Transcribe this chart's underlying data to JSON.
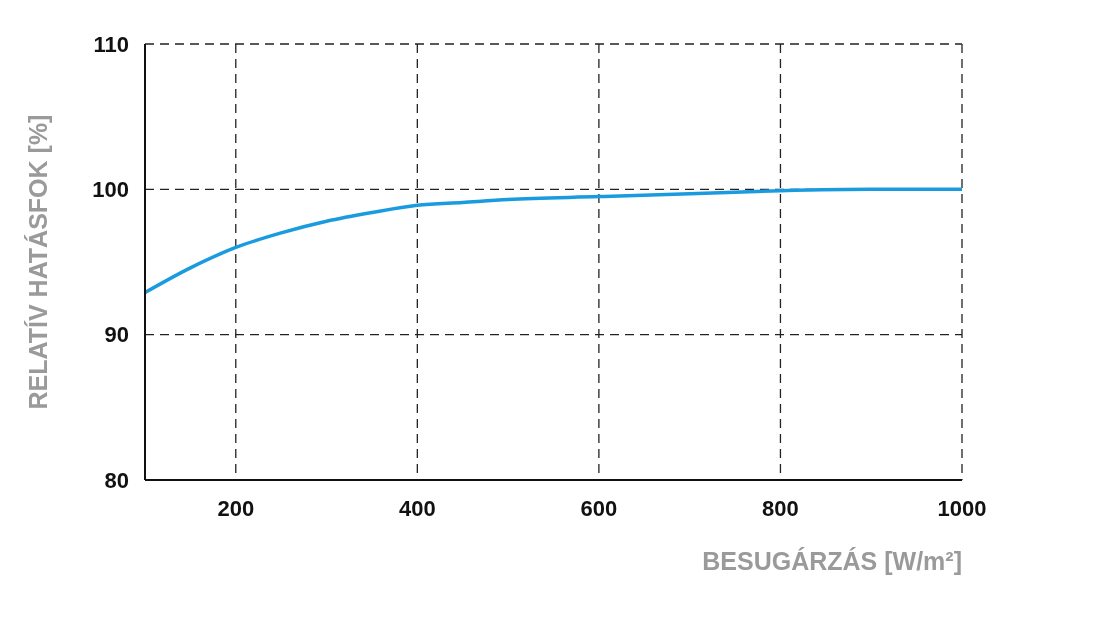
{
  "chart_data": {
    "type": "line",
    "xlabel": "BESUGÁRZÁS [W/m²]",
    "ylabel": "RELATÍV HATÁSFOK [%]",
    "x": [
      100,
      150,
      200,
      250,
      300,
      350,
      400,
      450,
      500,
      600,
      700,
      800,
      900,
      1000
    ],
    "series": [
      {
        "color": "#1a9be0",
        "values": [
          92.9,
          94.6,
          96.0,
          97.0,
          97.8,
          98.4,
          98.9,
          99.1,
          99.3,
          99.5,
          99.7,
          99.9,
          100,
          100
        ]
      }
    ],
    "xlim": [
      100,
      1000
    ],
    "xticks": [
      200,
      400,
      600,
      800,
      1000
    ],
    "ylim": [
      80,
      110
    ],
    "yticks": [
      80,
      90,
      100,
      110
    ],
    "grid": true,
    "marker": "none",
    "line_style": "solid"
  }
}
